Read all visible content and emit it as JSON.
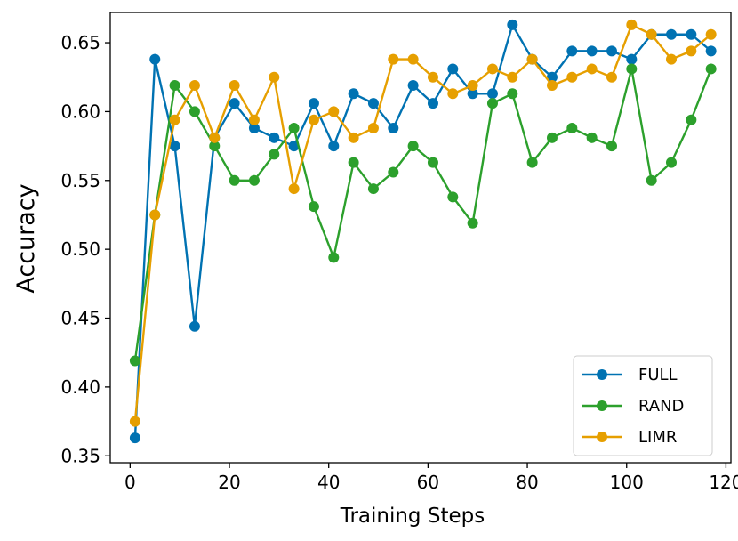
{
  "chart_data": {
    "type": "line",
    "title": "",
    "xlabel": "Training Steps",
    "ylabel": "Accuracy",
    "xlim": [
      -4,
      121
    ],
    "ylim": [
      0.345,
      0.672
    ],
    "xticks": [
      0,
      20,
      40,
      60,
      80,
      100,
      120
    ],
    "yticks": [
      0.35,
      0.4,
      0.45,
      0.5,
      0.55,
      0.6,
      0.65
    ],
    "xtick_labels": [
      "0",
      "20",
      "40",
      "60",
      "80",
      "100",
      "120"
    ],
    "ytick_labels": [
      "0.35",
      "0.40",
      "0.45",
      "0.50",
      "0.55",
      "0.60",
      "0.65"
    ],
    "grid": false,
    "legend_position": "lower-right",
    "x": [
      1,
      5,
      9,
      13,
      17,
      21,
      25,
      29,
      33,
      37,
      41,
      45,
      49,
      53,
      57,
      61,
      65,
      69,
      73,
      77,
      81,
      85,
      89,
      93,
      97,
      101,
      105,
      109,
      113,
      117
    ],
    "series": [
      {
        "name": "FULL",
        "color": "#0072B2",
        "values": [
          0.363,
          0.638,
          0.575,
          0.444,
          0.581,
          0.606,
          0.588,
          0.581,
          0.575,
          0.606,
          0.575,
          0.613,
          0.606,
          0.588,
          0.619,
          0.606,
          0.631,
          0.613,
          0.613,
          0.663,
          0.638,
          0.625,
          0.644,
          0.644,
          0.644,
          0.638,
          0.656,
          0.656,
          0.656,
          0.644
        ]
      },
      {
        "name": "RAND",
        "color": "#2CA02C",
        "values": [
          0.419,
          0.525,
          0.619,
          0.6,
          0.575,
          0.55,
          0.55,
          0.569,
          0.588,
          0.531,
          0.494,
          0.563,
          0.544,
          0.556,
          0.575,
          0.563,
          0.538,
          0.519,
          0.606,
          0.613,
          0.563,
          0.581,
          0.588,
          0.581,
          0.575,
          0.631,
          0.55,
          0.563,
          0.594,
          0.631
        ]
      },
      {
        "name": "LIMR",
        "color": "#E69F00",
        "values": [
          0.375,
          0.525,
          0.594,
          0.619,
          0.581,
          0.619,
          0.594,
          0.625,
          0.544,
          0.594,
          0.6,
          0.581,
          0.588,
          0.638,
          0.638,
          0.625,
          0.613,
          0.619,
          0.631,
          0.625,
          0.638,
          0.619,
          0.625,
          0.631,
          0.625,
          0.663,
          0.656,
          0.638,
          0.644,
          0.656
        ]
      }
    ]
  }
}
